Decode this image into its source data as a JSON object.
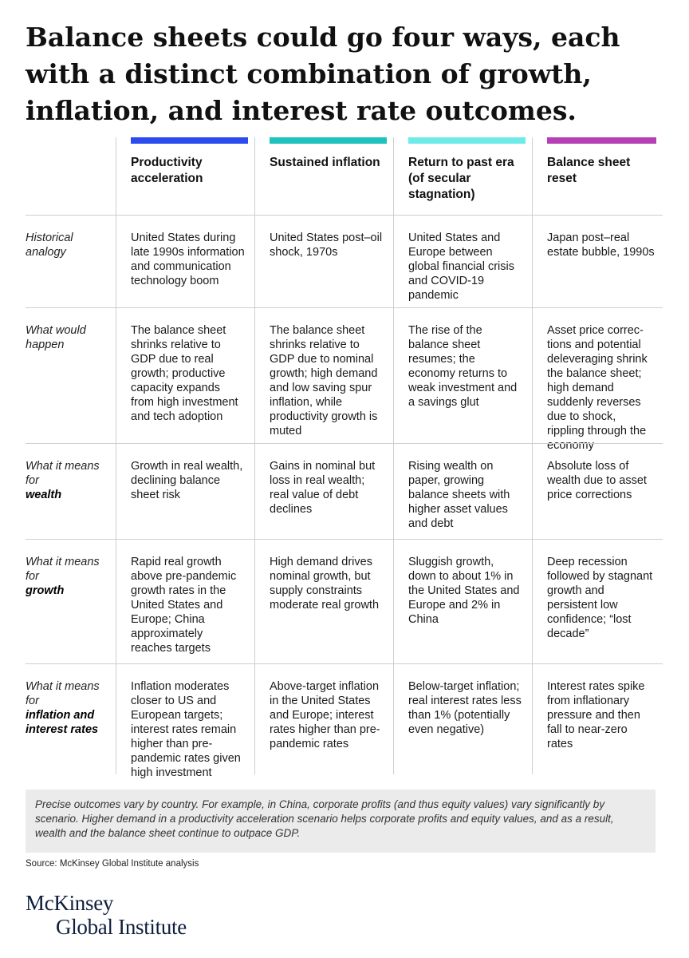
{
  "title": "Balance sheets could go four ways, each with a distinct combination of growth, inflation, and interest rate outcomes.",
  "colors": {
    "productivity": "#2b4bef",
    "sustained": "#1ec3bd",
    "return": "#6eeae8",
    "reset": "#b63fb6"
  },
  "columns": [
    {
      "label": "Productivity acceleration"
    },
    {
      "label": "Sustained inflation"
    },
    {
      "label": "Return to past era (of secular stagnation)"
    },
    {
      "label": "Balance sheet reset"
    }
  ],
  "rows": [
    {
      "label_italic": "Historical analogy",
      "label_bold": "",
      "cells": [
        "United States during late 1990s information and communication technology boom",
        "United States post–oil shock, 1970s",
        "United States and Europe between global financial crisis and COVID-19 pandemic",
        "Japan post–real estate bubble, 1990s"
      ]
    },
    {
      "label_italic": "What would happen",
      "label_bold": "",
      "cells": [
        "The balance sheet shrinks relative to GDP due to real growth; productive capacity expands from high investment and tech adoption",
        "The balance sheet shrinks relative to GDP due to nominal growth; high demand and low saving spur inflation, while productivity growth is muted",
        "The rise of the balance sheet resumes; the economy returns to weak investment and a savings glut",
        "Asset price correc­tions and potential deleveraging shrink the balance sheet; high demand suddenly reverses due to shock, rippling through the economy"
      ]
    },
    {
      "label_italic": "What it means for",
      "label_bold": "wealth",
      "cells": [
        "Growth in real wealth, declining balance sheet risk",
        "Gains in nominal but loss in real wealth; real value of debt declines",
        "Rising wealth on paper, growing balance sheets with higher asset values and debt",
        "Absolute loss of wealth due to asset price corrections"
      ]
    },
    {
      "label_italic": "What it means for",
      "label_bold": "growth",
      "cells": [
        "Rapid real growth above pre-pandemic growth rates in the United States and Europe; China approximately reaches targets",
        "High demand drives nominal growth, but supply constraints moderate real growth",
        "Sluggish growth, down to about 1% in the United States and Europe and 2% in China",
        "Deep recession followed by stagnant growth and persistent low confidence; “lost decade”"
      ]
    },
    {
      "label_italic": "What it means for",
      "label_bold": "inflation and interest rates",
      "cells": [
        "Inflation moderates closer to US and European targets; interest rates remain higher than pre-pandemic rates given high investment",
        "Above-target inflation in the United States and Europe; interest rates higher than pre-pandemic rates",
        "Below-target inflation; real interest rates less than 1% (potentially even negative)",
        "Interest rates spike from inflationary pressure and then fall to near-zero rates"
      ]
    }
  ],
  "note": "Precise outcomes vary by country. For example, in China, corporate profits (and thus equity values) vary significantly by scenario. Higher demand in a productivity acceleration scenario helps corporate profits and equity values, and as a result, wealth and the balance sheet continue to outpace GDP.",
  "source": "Source: McKinsey Global Institute analysis",
  "logo": {
    "line1": "McKinsey",
    "line2": "Global Institute"
  }
}
